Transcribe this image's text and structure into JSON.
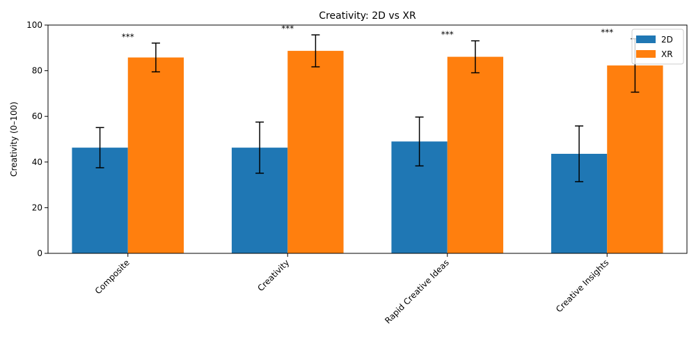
{
  "chart_data": {
    "type": "bar",
    "title": "Creativity: 2D vs XR",
    "xlabel": "",
    "ylabel": "Creativity (0–100)",
    "ylim": [
      0,
      100
    ],
    "yticks": [
      0,
      20,
      40,
      60,
      80,
      100
    ],
    "categories": [
      "Composite",
      "Creativity",
      "Rapid Creative Ideas",
      "Creative Insights"
    ],
    "series": [
      {
        "name": "2D",
        "color": "#1f77b4",
        "values": [
          46.3,
          46.3,
          49.0,
          43.6
        ],
        "errors": [
          8.8,
          11.2,
          10.7,
          12.2
        ]
      },
      {
        "name": "XR",
        "color": "#ff7f0e",
        "values": [
          85.8,
          88.7,
          86.1,
          82.3
        ],
        "errors": [
          6.3,
          7.0,
          7.0,
          11.7
        ]
      }
    ],
    "annotations": [
      "***",
      "***",
      "***",
      "***"
    ],
    "legend": "top-right",
    "grid": false
  }
}
